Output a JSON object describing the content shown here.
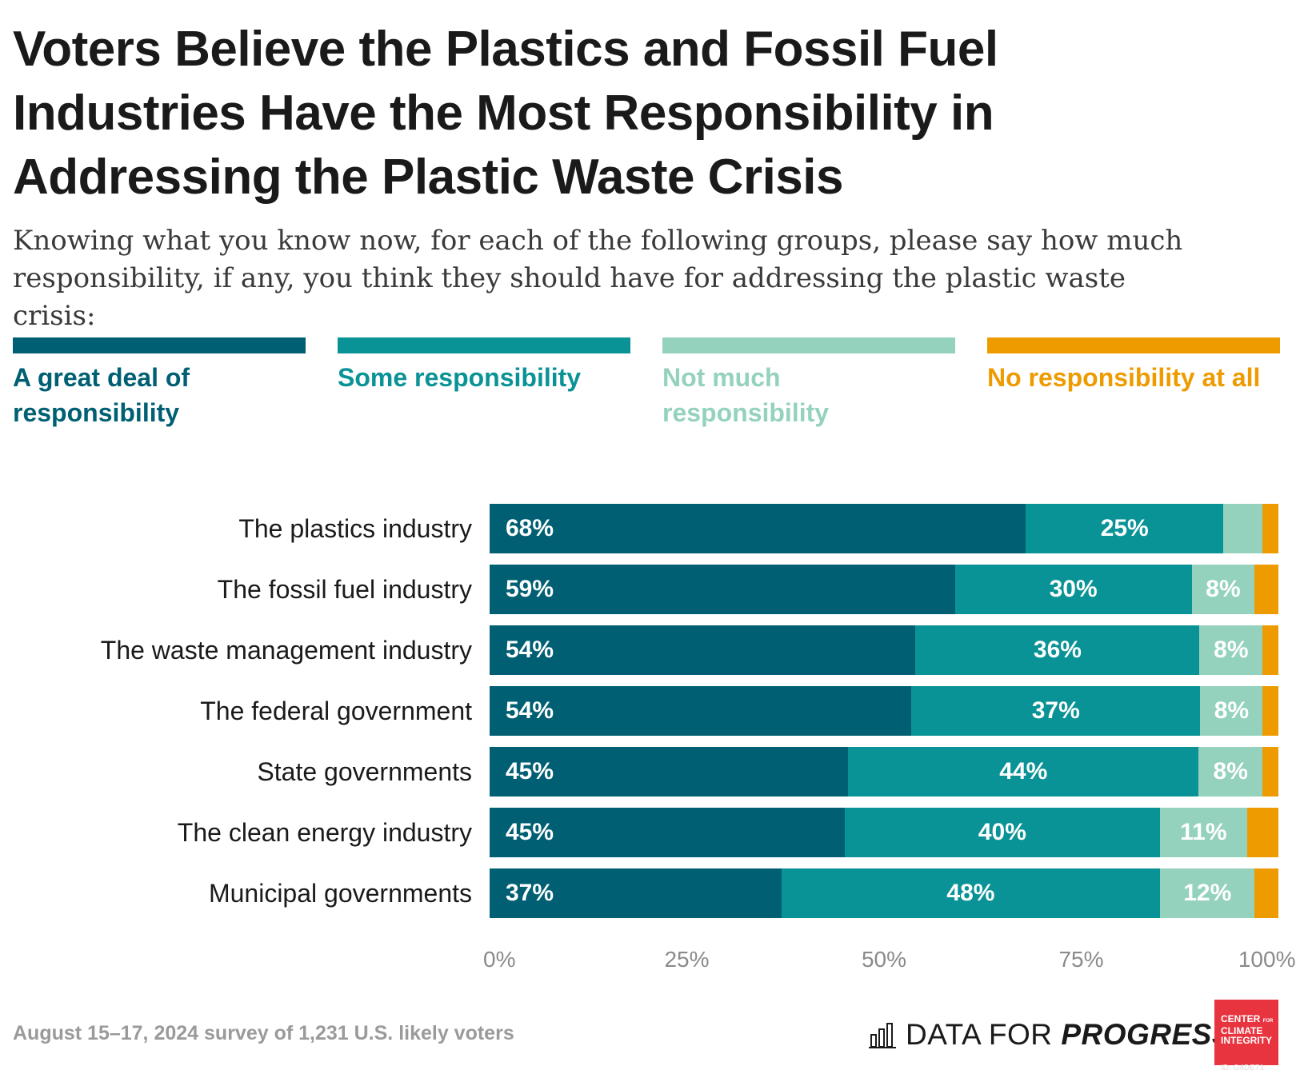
{
  "title": "Voters Believe the Plastics and Fossil Fuel Industries Have the Most Responsibility in Addressing the Plastic Waste Crisis",
  "subtitle": "Knowing what you know now, for each of the following groups, please say how much responsibility, if any, you think they should have for addressing the plastic waste crisis:",
  "legend": [
    {
      "label": "A great deal of responsibility",
      "color": "#005f73"
    },
    {
      "label": "Some responsibility",
      "color": "#0a9396"
    },
    {
      "label": "Not much responsibility",
      "color": "#94d2bd"
    },
    {
      "label": "No responsibility at all",
      "color": "#ee9b00"
    }
  ],
  "chart_data": {
    "type": "bar",
    "orientation": "horizontal",
    "stacked": true,
    "categories": [
      "The plastics industry",
      "The fossil fuel industry",
      "The waste management industry",
      "The federal government",
      "State governments",
      "The clean energy industry",
      "Municipal governments"
    ],
    "series": [
      {
        "name": "A great deal of responsibility",
        "values": [
          68,
          59,
          54,
          54,
          45,
          45,
          37
        ],
        "labels": [
          "68%",
          "59%",
          "54%",
          "54%",
          "45%",
          "45%",
          "37%"
        ]
      },
      {
        "name": "Some responsibility",
        "values": [
          25,
          30,
          36,
          37,
          44,
          40,
          48
        ],
        "labels": [
          "25%",
          "30%",
          "36%",
          "37%",
          "44%",
          "40%",
          "48%"
        ]
      },
      {
        "name": "Not much responsibility",
        "values": [
          5,
          8,
          8,
          8,
          8,
          11,
          12
        ],
        "labels": [
          "",
          "8%",
          "8%",
          "8%",
          "8%",
          "11%",
          "12%"
        ]
      },
      {
        "name": "No responsibility at all",
        "values": [
          2,
          3,
          2,
          2,
          2,
          4,
          3
        ],
        "labels": [
          "",
          "",
          "",
          "",
          "",
          "",
          ""
        ]
      }
    ],
    "xlim": [
      0,
      100
    ],
    "ticks": [
      "0%",
      "25%",
      "50%",
      "75%",
      "100%"
    ],
    "grid": false,
    "legend_position": "top"
  },
  "footnote": "August 15–17, 2024 survey of 1,231 U.S. likely voters",
  "logos": {
    "dfp_prefix": "DATA FOR ",
    "dfp_emph": "PROGRESS",
    "cci_line1": "CENTER",
    "cci_small": "FOR",
    "cci_line2": "CLIMATE",
    "cci_line3": "INTEGRITY",
    "image_id": "ID: G4DE71"
  }
}
